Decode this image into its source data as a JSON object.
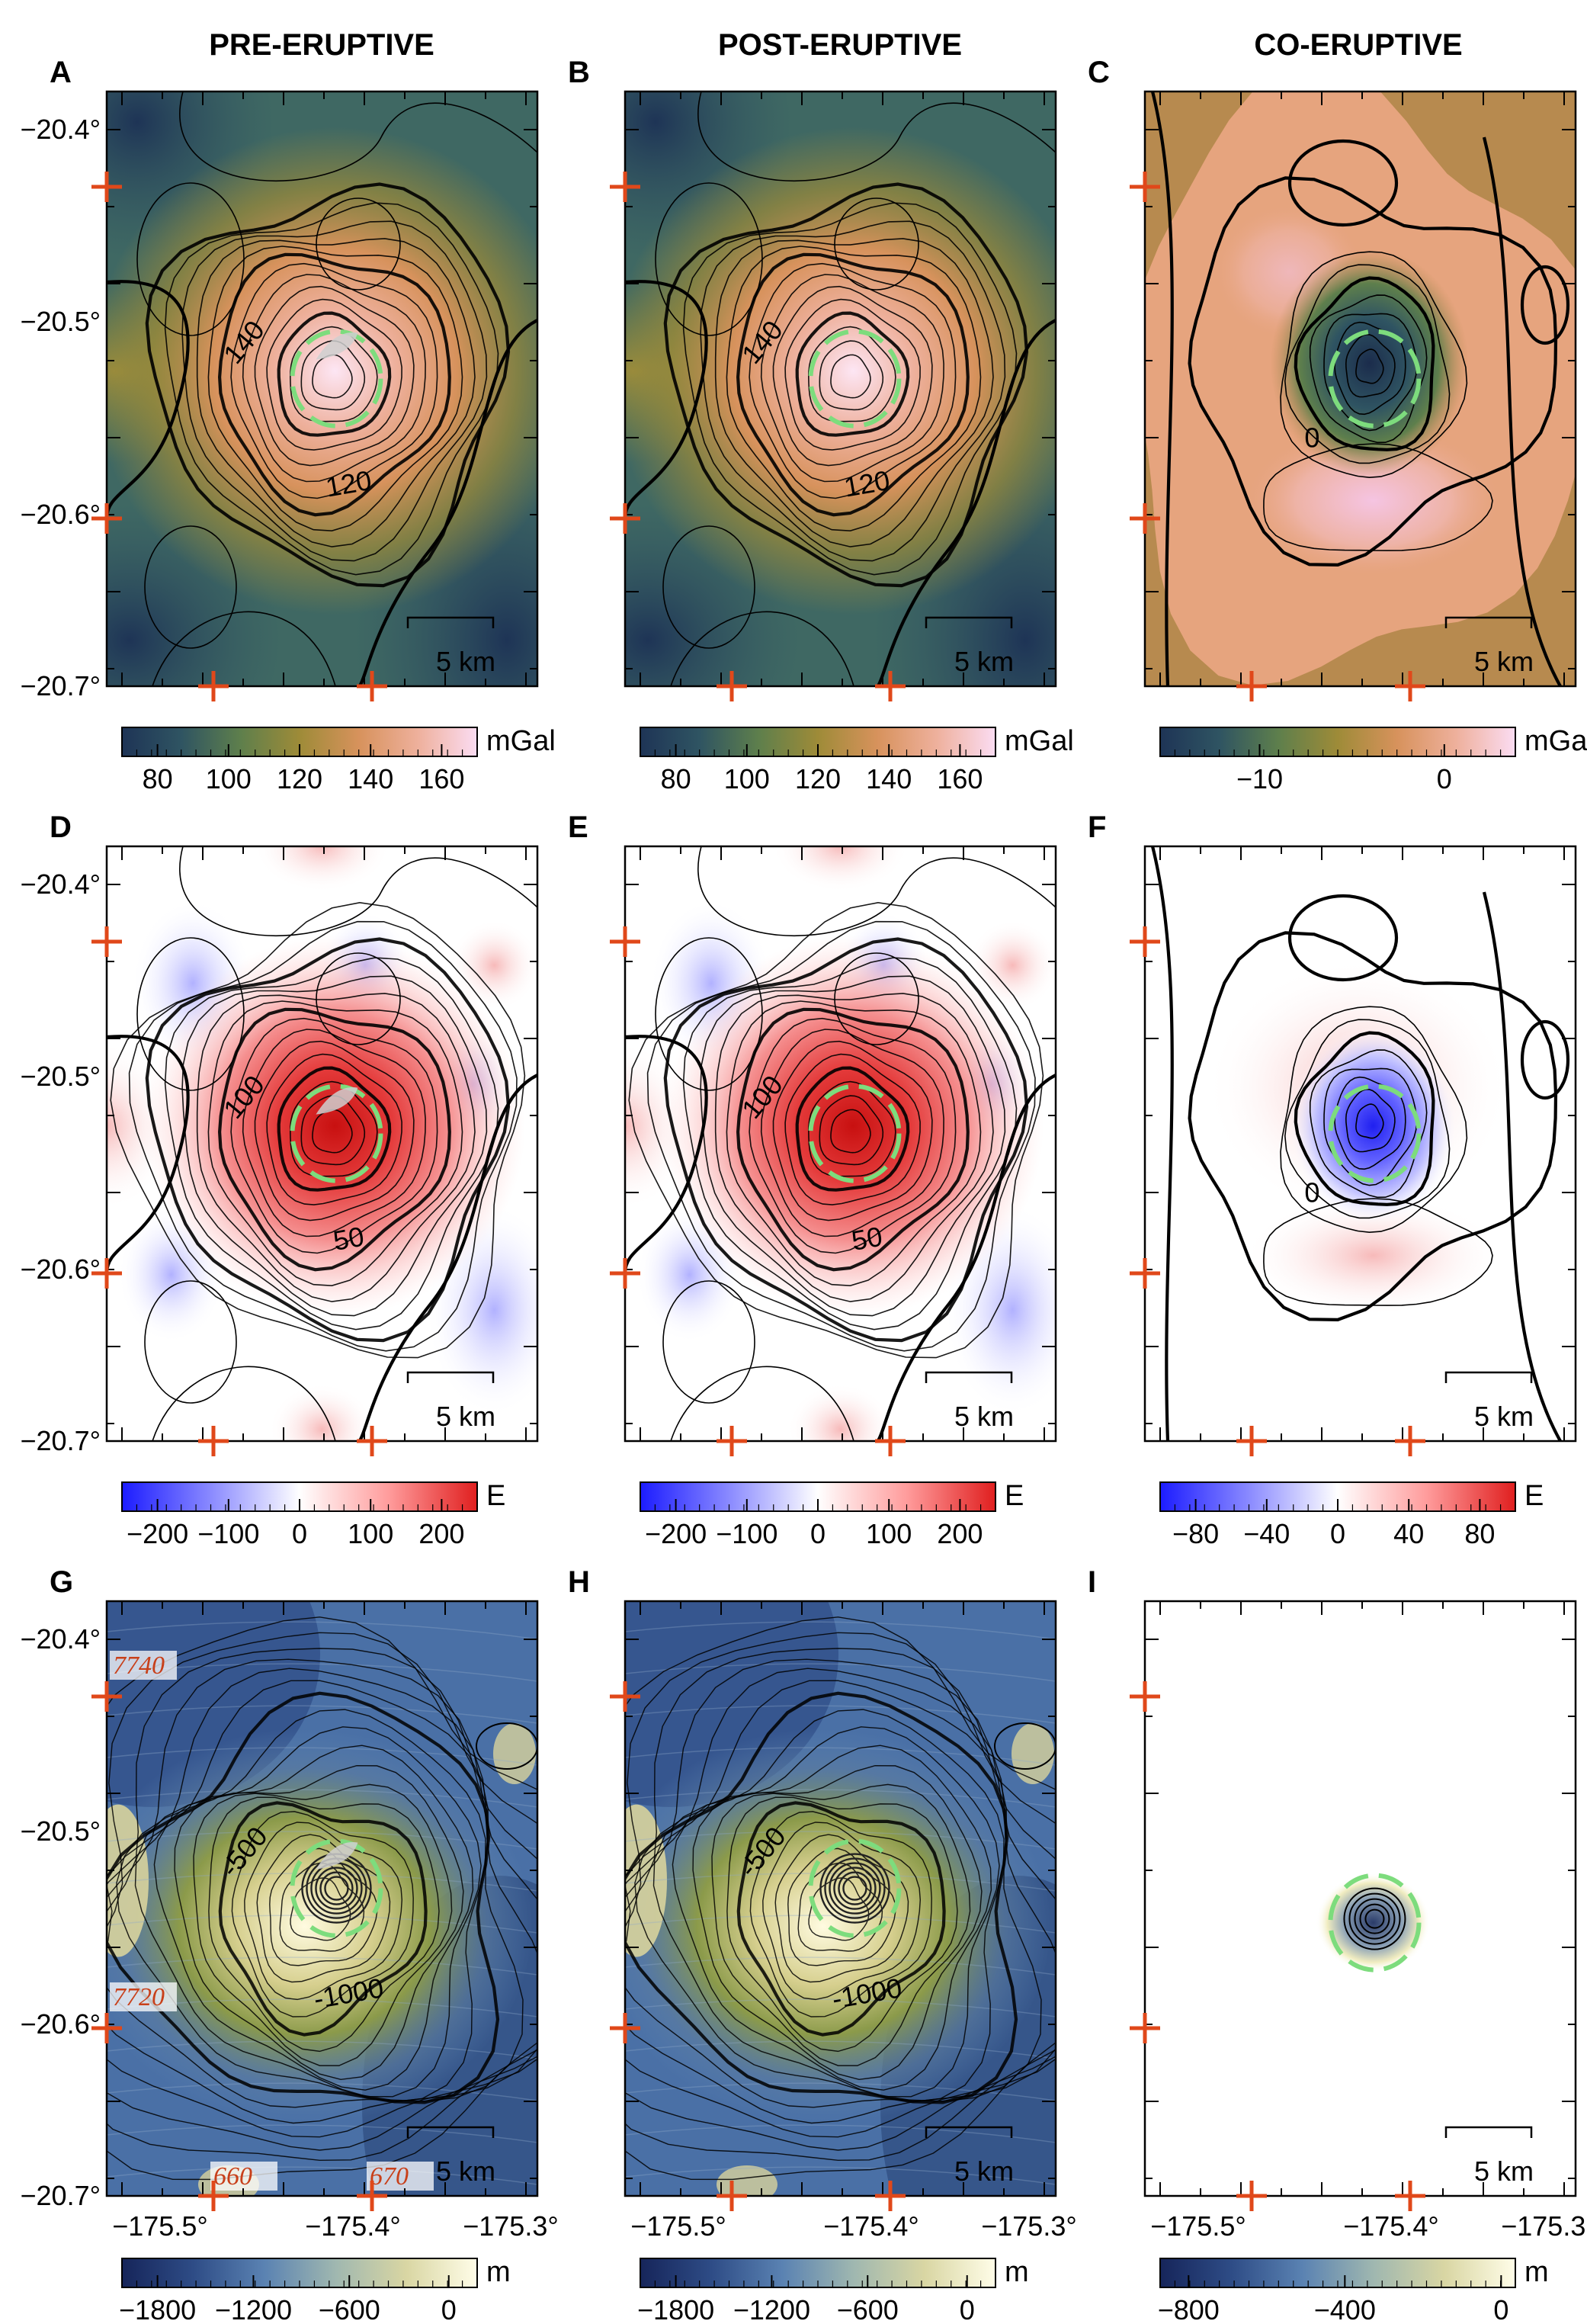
{
  "columns": [
    "PRE-ERUPTIVE",
    "POST-ERUPTIVE",
    "CO-ERUPTIVE"
  ],
  "axes": {
    "y_ticks": [
      "−20.4°",
      "−20.5°",
      "−20.6°",
      "−20.7°"
    ],
    "x_ticks": [
      "−175.5°",
      "−175.4°",
      "−175.3°"
    ],
    "scalebar_label": "5 km"
  },
  "colors": {
    "cross": "#e0481a",
    "crater": "#7ddc7d",
    "gravity": [
      "#1e3456",
      "#2f5462",
      "#5e7f4c",
      "#9e8b38",
      "#d7925c",
      "#eeb09c",
      "#fbdcf2"
    ],
    "gradient": [
      "#1c1cff",
      "#8a8aff",
      "#ffffff",
      "#ff9c9c",
      "#e01f1f"
    ],
    "bathy": [
      "#16255a",
      "#2e4c86",
      "#5a82b2",
      "#9fb7b0",
      "#d9d6a3",
      "#fffde8"
    ]
  },
  "panels": [
    {
      "letter": "A",
      "field": "gravity",
      "contour_labels": [
        "140",
        "120"
      ],
      "cbar_ticks": [
        "80",
        "100",
        "120",
        "140",
        "160"
      ],
      "unit": "mGal"
    },
    {
      "letter": "B",
      "field": "gravity",
      "contour_labels": [
        "140",
        "120"
      ],
      "cbar_ticks": [
        "80",
        "100",
        "120",
        "140",
        "160"
      ],
      "unit": "mGal"
    },
    {
      "letter": "C",
      "field": "gravity_co",
      "contour_labels": [
        "0"
      ],
      "cbar_ticks": [
        "−10",
        "0"
      ],
      "unit": "mGal"
    },
    {
      "letter": "D",
      "field": "gradient",
      "contour_labels": [
        "100",
        "50"
      ],
      "cbar_ticks": [
        "−200",
        "−100",
        "0",
        "100",
        "200"
      ],
      "unit": "E"
    },
    {
      "letter": "E",
      "field": "gradient",
      "contour_labels": [
        "100",
        "50"
      ],
      "cbar_ticks": [
        "−200",
        "−100",
        "0",
        "100",
        "200"
      ],
      "unit": "E"
    },
    {
      "letter": "F",
      "field": "gradient_co",
      "contour_labels": [
        "0"
      ],
      "cbar_ticks": [
        "−80",
        "−40",
        "0",
        "40",
        "80"
      ],
      "unit": "E"
    },
    {
      "letter": "G",
      "field": "bathy",
      "contour_labels": [
        "-500",
        "-1000"
      ],
      "cbar_ticks": [
        "−1800",
        "−1200",
        "−600",
        "0"
      ],
      "unit": "m",
      "grid_labels": [
        "7740",
        "7720",
        "660",
        "670"
      ]
    },
    {
      "letter": "H",
      "field": "bathy",
      "contour_labels": [
        "-500",
        "-1000"
      ],
      "cbar_ticks": [
        "−1800",
        "−1200",
        "−600",
        "0"
      ],
      "unit": "m"
    },
    {
      "letter": "I",
      "field": "bathy_co",
      "contour_labels": [],
      "cbar_ticks": [
        "−800",
        "−400",
        "0"
      ],
      "unit": "m"
    }
  ]
}
